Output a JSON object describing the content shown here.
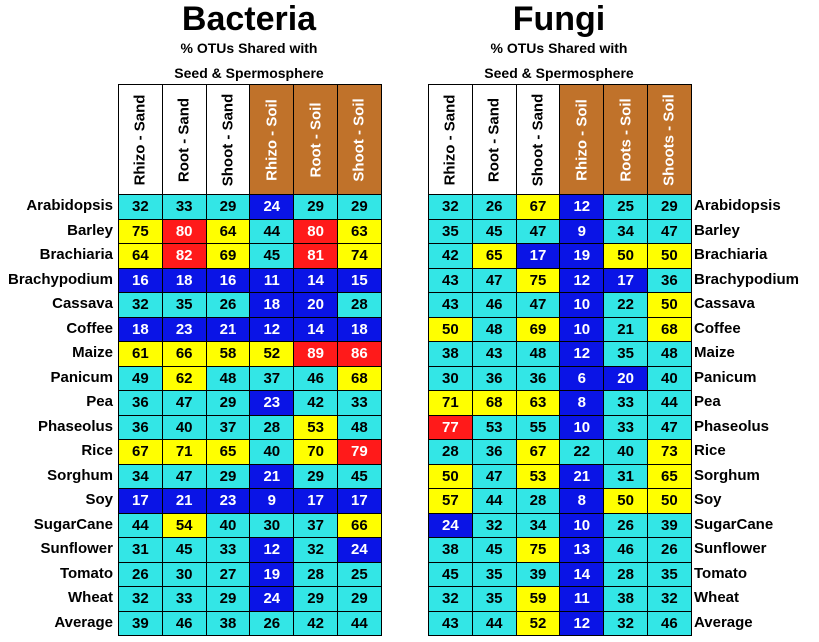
{
  "chart_data": [
    {
      "type": "table",
      "title": "Bacteria",
      "subtitle_line1": "% OTUs Shared with",
      "subtitle_line2": "Seed & Spermosphere",
      "columns": [
        "Rhizo - Sand",
        "Root - Sand",
        "Shoot - Sand",
        "Rhizo - Soil",
        "Root - Soil",
        "Shoot - Soil"
      ],
      "column_colors": [
        "#ffffff",
        "#ffffff",
        "#ffffff",
        "#c0722a",
        "#c0722a",
        "#c0722a"
      ],
      "column_text_colors": [
        "#000000",
        "#000000",
        "#000000",
        "#ffffff",
        "#ffffff",
        "#ffffff"
      ],
      "rows": [
        "Arabidopsis",
        "Barley",
        "Brachiaria",
        "Brachypodium",
        "Cassava",
        "Coffee",
        "Maize",
        "Panicum",
        "Pea",
        "Phaseolus",
        "Rice",
        "Sorghum",
        "Soy",
        "SugarCane",
        "Sunflower",
        "Tomato",
        "Wheat",
        "Average"
      ],
      "values": [
        [
          32,
          33,
          29,
          24,
          29,
          29
        ],
        [
          75,
          80,
          64,
          44,
          80,
          63
        ],
        [
          64,
          82,
          69,
          45,
          81,
          74
        ],
        [
          16,
          18,
          16,
          11,
          14,
          15
        ],
        [
          32,
          35,
          26,
          18,
          20,
          28
        ],
        [
          18,
          23,
          21,
          12,
          14,
          18
        ],
        [
          61,
          66,
          58,
          52,
          89,
          86
        ],
        [
          49,
          62,
          48,
          37,
          46,
          68
        ],
        [
          36,
          47,
          29,
          23,
          42,
          33
        ],
        [
          36,
          40,
          37,
          28,
          53,
          48
        ],
        [
          67,
          71,
          65,
          40,
          70,
          79
        ],
        [
          34,
          47,
          29,
          21,
          29,
          45
        ],
        [
          17,
          21,
          23,
          9,
          17,
          17
        ],
        [
          44,
          54,
          40,
          30,
          37,
          66
        ],
        [
          31,
          45,
          33,
          12,
          32,
          24
        ],
        [
          26,
          30,
          27,
          19,
          28,
          25
        ],
        [
          32,
          33,
          29,
          24,
          29,
          29
        ],
        [
          39,
          46,
          38,
          26,
          42,
          44
        ]
      ],
      "cell_colors": [
        [
          "c",
          "c",
          "c",
          "b",
          "c",
          "c"
        ],
        [
          "y",
          "r",
          "y",
          "c",
          "r",
          "y"
        ],
        [
          "y",
          "r",
          "y",
          "c",
          "r",
          "y"
        ],
        [
          "b",
          "b",
          "b",
          "b",
          "b",
          "b"
        ],
        [
          "c",
          "c",
          "c",
          "b",
          "b",
          "c"
        ],
        [
          "b",
          "b",
          "b",
          "b",
          "b",
          "b"
        ],
        [
          "y",
          "y",
          "y",
          "y",
          "r",
          "r"
        ],
        [
          "c",
          "y",
          "c",
          "c",
          "c",
          "y"
        ],
        [
          "c",
          "c",
          "c",
          "b",
          "c",
          "c"
        ],
        [
          "c",
          "c",
          "c",
          "c",
          "y",
          "c"
        ],
        [
          "y",
          "y",
          "y",
          "c",
          "y",
          "r"
        ],
        [
          "c",
          "c",
          "c",
          "b",
          "c",
          "c"
        ],
        [
          "b",
          "b",
          "b",
          "b",
          "b",
          "b"
        ],
        [
          "c",
          "y",
          "c",
          "c",
          "c",
          "y"
        ],
        [
          "c",
          "c",
          "c",
          "b",
          "c",
          "b"
        ],
        [
          "c",
          "c",
          "c",
          "b",
          "c",
          "c"
        ],
        [
          "c",
          "c",
          "c",
          "b",
          "c",
          "c"
        ],
        [
          "c",
          "c",
          "c",
          "c",
          "c",
          "c"
        ]
      ]
    },
    {
      "type": "table",
      "title": "Fungi",
      "subtitle_line1": "% OTUs Shared with",
      "subtitle_line2": "Seed & Spermosphere",
      "columns": [
        "Rhizo - Sand",
        "Root - Sand",
        "Shoot - Sand",
        "Rhizo - Soil",
        "Roots - Soil",
        "Shoots - Soil"
      ],
      "column_colors": [
        "#ffffff",
        "#ffffff",
        "#ffffff",
        "#c0722a",
        "#c0722a",
        "#c0722a"
      ],
      "column_text_colors": [
        "#000000",
        "#000000",
        "#000000",
        "#ffffff",
        "#ffffff",
        "#ffffff"
      ],
      "rows": [
        "Arabidopsis",
        "Barley",
        "Brachiaria",
        "Brachypodium",
        "Cassava",
        "Coffee",
        "Maize",
        "Panicum",
        "Pea",
        "Phaseolus",
        "Rice",
        "Sorghum",
        "Soy",
        "SugarCane",
        "Sunflower",
        "Tomato",
        "Wheat",
        "Average"
      ],
      "values": [
        [
          32,
          26,
          67,
          12,
          25,
          29
        ],
        [
          35,
          45,
          47,
          9,
          34,
          47
        ],
        [
          42,
          65,
          17,
          19,
          50,
          50
        ],
        [
          43,
          47,
          75,
          12,
          17,
          36
        ],
        [
          43,
          46,
          47,
          10,
          22,
          50
        ],
        [
          50,
          48,
          69,
          10,
          21,
          68
        ],
        [
          38,
          43,
          48,
          12,
          35,
          48
        ],
        [
          30,
          36,
          36,
          6,
          20,
          40
        ],
        [
          71,
          68,
          63,
          8,
          33,
          44
        ],
        [
          77,
          53,
          55,
          10,
          33,
          47
        ],
        [
          28,
          36,
          67,
          22,
          40,
          73
        ],
        [
          50,
          47,
          53,
          21,
          31,
          65
        ],
        [
          57,
          44,
          28,
          8,
          50,
          50
        ],
        [
          24,
          32,
          34,
          10,
          26,
          39
        ],
        [
          38,
          45,
          75,
          13,
          46,
          26
        ],
        [
          45,
          35,
          39,
          14,
          28,
          35
        ],
        [
          32,
          35,
          59,
          11,
          38,
          32
        ],
        [
          43,
          44,
          52,
          12,
          32,
          46
        ]
      ],
      "cell_colors": [
        [
          "c",
          "c",
          "y",
          "b",
          "c",
          "c"
        ],
        [
          "c",
          "c",
          "c",
          "b",
          "c",
          "c"
        ],
        [
          "c",
          "y",
          "b",
          "b",
          "y",
          "y"
        ],
        [
          "c",
          "c",
          "y",
          "b",
          "b",
          "c"
        ],
        [
          "c",
          "c",
          "c",
          "b",
          "c",
          "y"
        ],
        [
          "y",
          "c",
          "y",
          "b",
          "c",
          "y"
        ],
        [
          "c",
          "c",
          "c",
          "b",
          "c",
          "c"
        ],
        [
          "c",
          "c",
          "c",
          "b",
          "b",
          "c"
        ],
        [
          "y",
          "y",
          "y",
          "b",
          "c",
          "c"
        ],
        [
          "r",
          "c",
          "c",
          "b",
          "c",
          "c"
        ],
        [
          "c",
          "c",
          "y",
          "c",
          "c",
          "y"
        ],
        [
          "y",
          "c",
          "y",
          "b",
          "c",
          "y"
        ],
        [
          "y",
          "c",
          "c",
          "b",
          "y",
          "y"
        ],
        [
          "b",
          "c",
          "c",
          "b",
          "c",
          "c"
        ],
        [
          "c",
          "c",
          "y",
          "b",
          "c",
          "c"
        ],
        [
          "c",
          "c",
          "c",
          "b",
          "c",
          "c"
        ],
        [
          "c",
          "c",
          "y",
          "b",
          "c",
          "c"
        ],
        [
          "c",
          "c",
          "y",
          "b",
          "c",
          "c"
        ]
      ]
    }
  ],
  "palette": {
    "c": "#33e6e6",
    "y": "#ffff00",
    "b": "#0a14e6",
    "r": "#ff1a1a"
  },
  "palette_text": {
    "c": "#000000",
    "y": "#000000",
    "b": "#ffffff",
    "r": "#ffffff"
  }
}
